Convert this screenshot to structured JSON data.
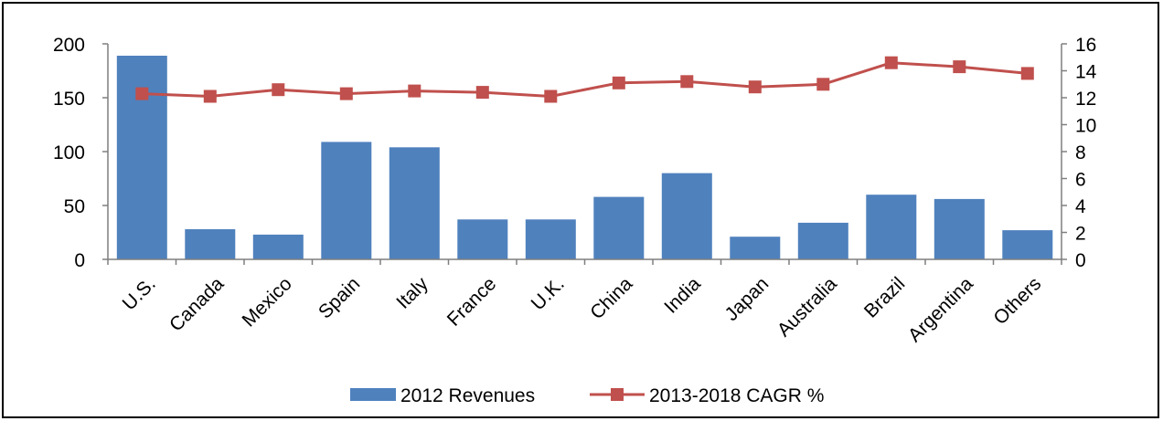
{
  "chart_data": {
    "type": "bar",
    "title": "",
    "categories": [
      "U.S.",
      "Canada",
      "Mexico",
      "Spain",
      "Italy",
      "France",
      "U.K.",
      "China",
      "India",
      "Japan",
      "Australia",
      "Brazil",
      "Argentina",
      "Others"
    ],
    "series": [
      {
        "name": "2012 Revenues",
        "type": "bar",
        "axis": "left",
        "color": "#4F81BD",
        "values": [
          189,
          28,
          23,
          109,
          104,
          37,
          37,
          58,
          80,
          21,
          34,
          60,
          56,
          27
        ]
      },
      {
        "name": "2013-2018 CAGR %",
        "type": "line",
        "axis": "right",
        "color": "#C0504D",
        "marker": "square",
        "values": [
          12.3,
          12.1,
          12.6,
          12.3,
          12.5,
          12.4,
          12.1,
          13.1,
          13.2,
          12.8,
          13.0,
          14.6,
          14.3,
          13.8
        ]
      }
    ],
    "y_left": {
      "ylim": [
        0,
        200
      ],
      "ticks": [
        0,
        50,
        100,
        150,
        200
      ]
    },
    "y_right": {
      "ylim": [
        0,
        16
      ],
      "ticks": [
        0,
        2,
        4,
        6,
        8,
        10,
        12,
        14,
        16
      ]
    },
    "xlabel": "",
    "ylabel": "",
    "grid": false,
    "legend": {
      "position": "bottom",
      "entries": [
        "2012 Revenues",
        "2013-2018 CAGR %"
      ]
    }
  }
}
